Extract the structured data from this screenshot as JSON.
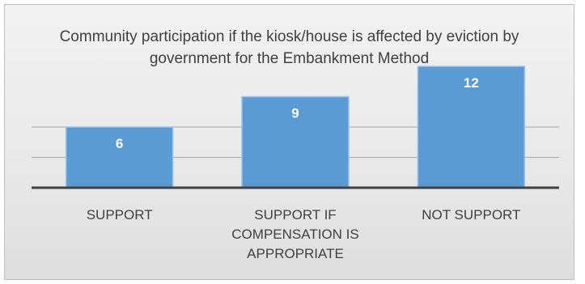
{
  "chart_data": {
    "type": "bar",
    "title": "Community participation if the kiosk/house is affected by eviction by government for the Embankment Method",
    "categories": [
      "SUPPORT",
      "SUPPORT IF COMPENSATION IS APPROPRIATE",
      "NOT SUPPORT"
    ],
    "values": [
      6,
      9,
      12
    ],
    "ylim": [
      0,
      14
    ],
    "grid": true,
    "legend": "none",
    "data_labels": true,
    "colors": {
      "bar": "#5b9bd5",
      "bar_border": "#9dc3e6",
      "label": "#ffffff",
      "axis": "#404040",
      "grid": "#a6a6a6"
    }
  }
}
